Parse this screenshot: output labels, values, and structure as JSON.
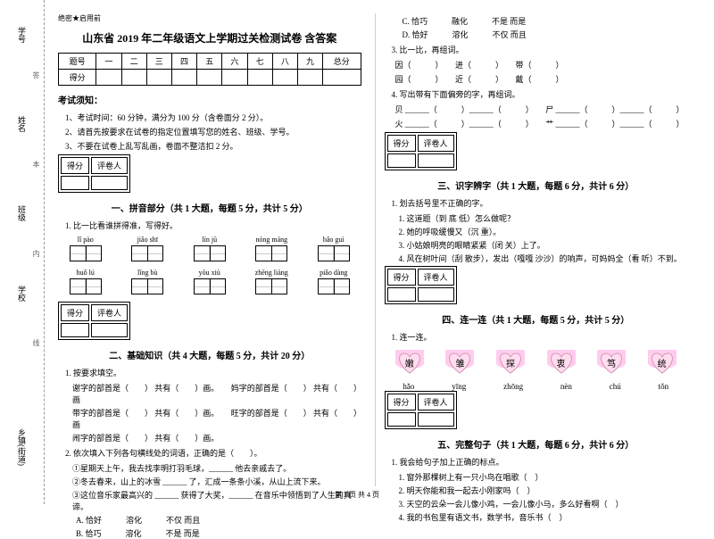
{
  "header_tag": "绝密★启用前",
  "title": "山东省 2019 年二年级语文上学期过关检测试卷  含答案",
  "margin": {
    "l1": "学号",
    "l2": "姓名",
    "l3": "班级",
    "l4": "学校",
    "l5": "乡镇(街道)",
    "h1": "答",
    "h2": "本",
    "h3": "内",
    "h4": "线"
  },
  "score_headers": [
    "题号",
    "一",
    "二",
    "三",
    "四",
    "五",
    "六",
    "七",
    "八",
    "九",
    "总分"
  ],
  "score_row": "得分",
  "notice_title": "考试须知：",
  "notices": [
    "1、考试时间：60 分钟，满分为 100 分（含卷面分 2 分）。",
    "2、请首先按要求在试卷的指定位置填写您的姓名、班级、学号。",
    "3、不要在试卷上乱写乱画，卷面不整洁扣 2 分。"
  ],
  "scorebox": {
    "c1": "得分",
    "c2": "评卷人"
  },
  "part1": {
    "title": "一、拼音部分（共 1 大题，每题 5 分，共计 5 分）",
    "q1": "1. 比一比看谁拼得准，写得好。",
    "row1": [
      "lǐ  pào",
      "jiǎo  shī",
      "lín  jū",
      "nóng  máng",
      "bǎo  guì"
    ],
    "row2": [
      "huǒ  lú",
      "lǐng  bù",
      "yōu  xiù",
      "zhēng  liàng",
      "piǎo  dàng"
    ]
  },
  "part2": {
    "title": "二、基础知识（共 4 大题，每题 5 分，共计 20 分）",
    "q1": "1. 按要求填空。",
    "q1_lines": [
      "谢字的部首是（　　） 共有（　　）画。　　妈字的部首是（　　） 共有（　　）画",
      "带字的部首是（　　） 共有（　　）画。　　旺字的部首是（　　） 共有（　　）画",
      "闹字的部首是（　　） 共有（　　）画。"
    ],
    "q2": "2. 依次填入下列各句横线处的词语，正确的是（　　）。",
    "q2_lines": [
      "①星期天上午，我去找李明打羽毛球，______ 他去亲戚去了。",
      "②冬去春来，山上的冰雪 ______ 了，汇成一条条小溪，从山上流下来。",
      "③这位音乐家最高兴的 ______ 获得了大奖，______ 在音乐中领悟到了人生的真谛。"
    ],
    "q2_opts": [
      "A. 恰好　　　溶化　　　不仅  而且",
      "B. 恰巧　　　溶化　　　不是  而是",
      "C. 恰巧　　　融化　　　不是  而是",
      "D. 恰好　　　溶化　　　不仅  而且"
    ],
    "q3": "3. 比一比，再组词。",
    "q3_lines": [
      "因（　　　）　　进（　　　）　　带（　　　）",
      "园（　　　）　　近（　　　）　　戴（　　　）"
    ],
    "q4": "4. 写出带有下面偏旁的字，再组词。",
    "q4_lines": [
      "贝 ______（　　　）______（　　　）　　尸 ______（　　　）______（　　　）",
      "火 ______（　　　）______（　　　）　　艹 ______（　　　）______（　　　）"
    ]
  },
  "part3": {
    "title": "三、识字辨字（共 1 大题，每题 6 分，共计 6 分）",
    "q1": "1. 划去括号里不正确的字。",
    "lines": [
      "1. 这道题（到  底  低）怎么做呢？",
      "2. 她的呼吸缓慢又（沉  重）。",
      "3. 小姑娘明亮的眼睛紧紧（闭  关）上了。",
      "4. 风在树叶间（刮  散步），发出（嘎嘎  沙沙）的响声，可妈妈全（看  听）不到。"
    ]
  },
  "part4": {
    "title": "四、连一连（共 1 大题，每题 5 分，共计 5 分）",
    "q1": "1. 连一连。",
    "hearts": [
      "嫩",
      "雏",
      "探",
      "衷",
      "笃",
      "统"
    ],
    "pinyins": [
      "hǎo",
      "yīng",
      "zhōng",
      "nèn",
      "chú",
      "tǒn"
    ]
  },
  "part5": {
    "title": "五、完整句子（共 1 大题，每题 6 分，共计 6 分）",
    "q1": "1. 我会给句子加上正确的标点。",
    "lines": [
      "1. 窗外那棵树上有一只小鸟在唱歌（　）",
      "2. 明天你能和我一起去小刚家吗（　）",
      "3. 天空的云朵一会儿像小鸡，一会儿像小马，多么好看啊（　）",
      "4. 我的书包里有语文书，数学书，音乐书（　）"
    ]
  },
  "footer": "第 1 页 共 4 页"
}
